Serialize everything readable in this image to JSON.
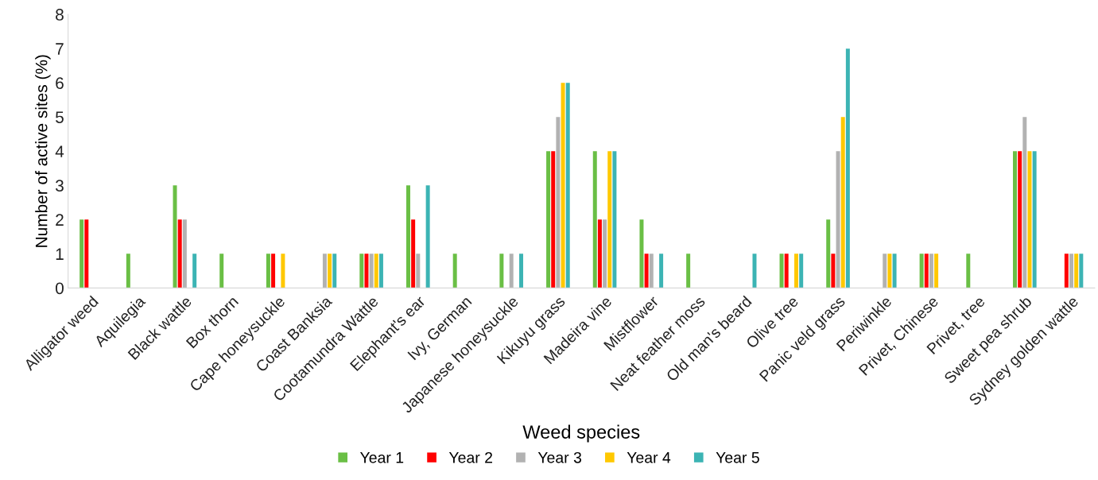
{
  "chart_data": {
    "type": "bar",
    "xlabel": "Weed species",
    "ylabel": "Number of active sites (%)",
    "categories": [
      "Alligator weed",
      "Aquilegia",
      "Black wattle",
      "Box thorn",
      "Cape honeysuckle",
      "Coast Banksia",
      "Cootamundra Wattle",
      "Elephant's ear",
      "Ivy, German",
      "Japanese honeysuckle",
      "Kikuyu grass",
      "Madeira vine",
      "Mistflower",
      "Neat feather moss",
      "Old man's beard",
      "Olive tree",
      "Panic veld grass",
      "Periwinkle",
      "Privet, Chinese",
      "Privet, tree",
      "Sweet pea shrub",
      "Sydney golden wattle"
    ],
    "series": [
      {
        "name": "Year 1",
        "color": "#6abf45",
        "values": [
          2,
          1,
          3,
          1,
          1,
          0,
          1,
          3,
          1,
          1,
          4,
          4,
          2,
          1,
          0,
          1,
          2,
          0,
          1,
          1,
          4,
          0
        ]
      },
      {
        "name": "Year 2",
        "color": "#ff0000",
        "values": [
          2,
          0,
          2,
          0,
          1,
          0,
          1,
          2,
          0,
          0,
          4,
          2,
          1,
          0,
          0,
          1,
          1,
          0,
          1,
          0,
          4,
          1
        ]
      },
      {
        "name": "Year 3",
        "color": "#b2b2b2",
        "values": [
          0,
          0,
          2,
          0,
          0,
          1,
          1,
          1,
          0,
          1,
          5,
          2,
          1,
          0,
          0,
          0,
          4,
          1,
          1,
          0,
          5,
          1
        ]
      },
      {
        "name": "Year 4",
        "color": "#ffc800",
        "values": [
          0,
          0,
          0,
          0,
          1,
          1,
          1,
          0,
          0,
          0,
          6,
          4,
          0,
          0,
          0,
          1,
          5,
          1,
          1,
          0,
          4,
          1
        ]
      },
      {
        "name": "Year 5",
        "color": "#3cb4b4",
        "values": [
          0,
          0,
          1,
          0,
          0,
          1,
          1,
          3,
          0,
          1,
          6,
          4,
          1,
          0,
          1,
          1,
          7,
          1,
          0,
          0,
          4,
          1
        ]
      }
    ],
    "ylim": [
      0,
      8
    ],
    "yticks": [
      0,
      1,
      2,
      3,
      4,
      5,
      6,
      7,
      8
    ],
    "grid": false,
    "legend": "bottom"
  }
}
